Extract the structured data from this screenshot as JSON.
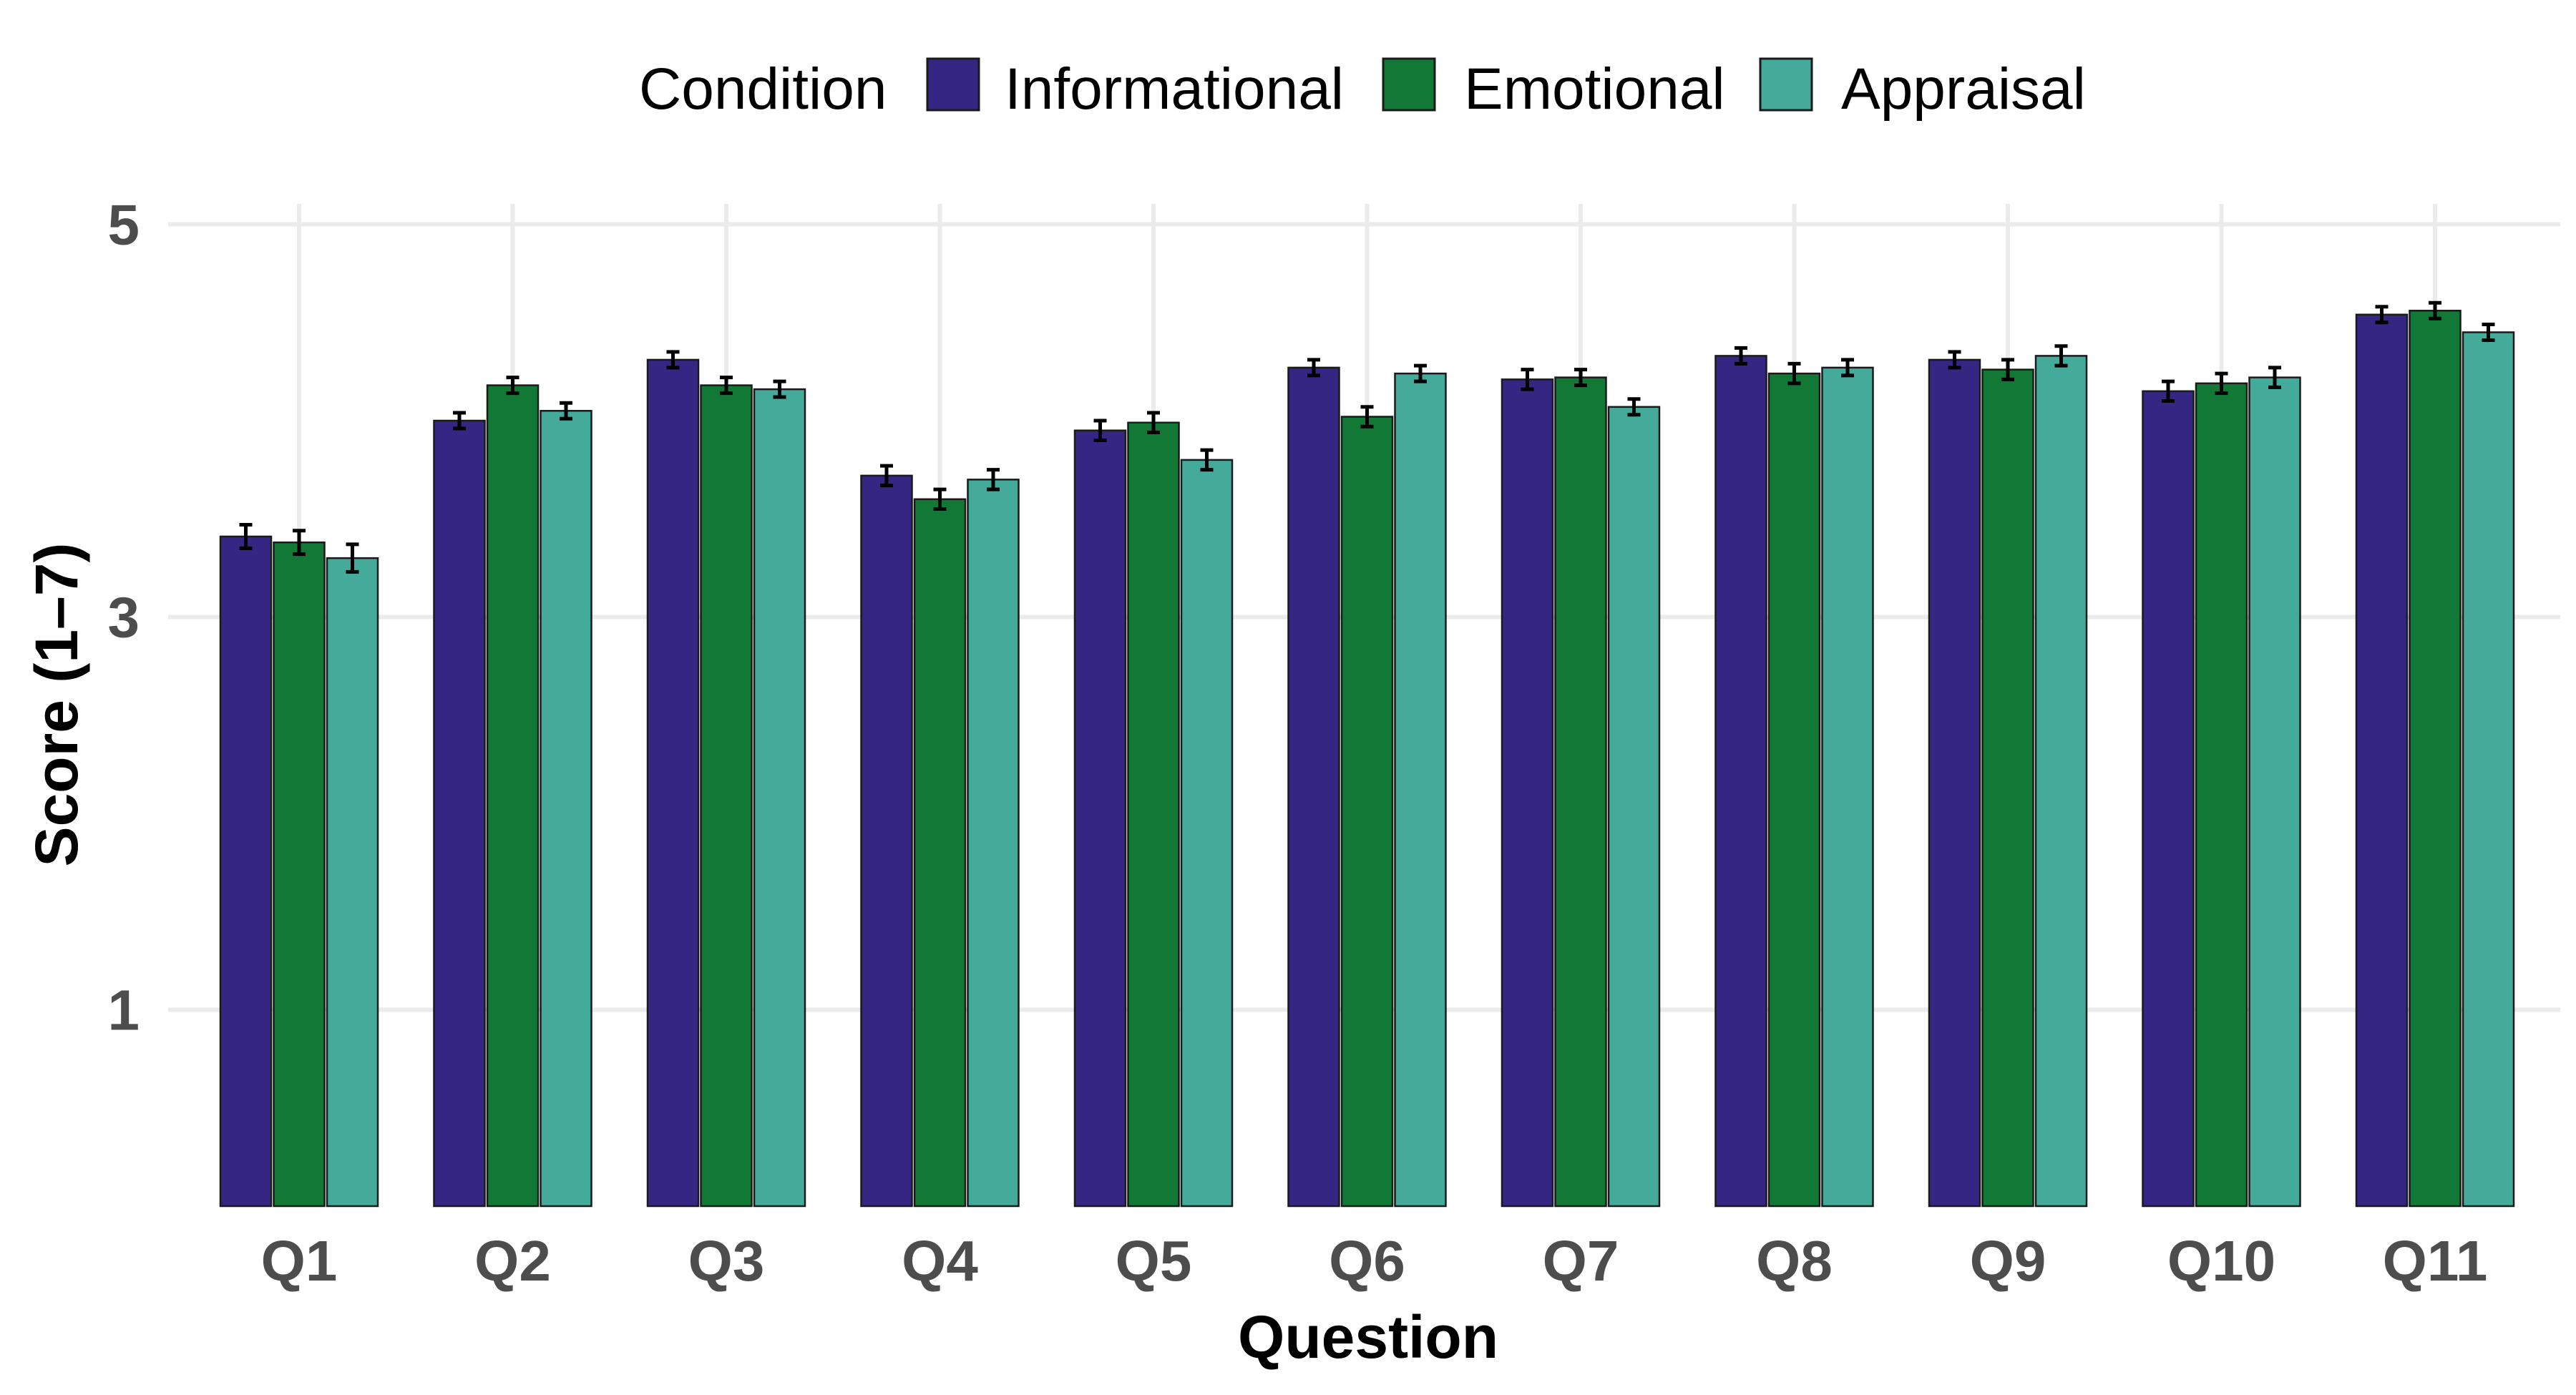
{
  "chart_data": {
    "type": "bar",
    "xlabel": "Question",
    "ylabel": "Score (1–7)",
    "ylim": [
      0,
      5
    ],
    "yticks": [
      1,
      3,
      5
    ],
    "grid": true,
    "legend": {
      "title": "Condition",
      "position": "top"
    },
    "categories": [
      "Q1",
      "Q2",
      "Q3",
      "Q4",
      "Q5",
      "Q6",
      "Q7",
      "Q8",
      "Q9",
      "Q10",
      "Q11"
    ],
    "series": [
      {
        "name": "Informational",
        "color": "#352683",
        "values": [
          3.41,
          4.0,
          4.31,
          3.72,
          3.95,
          4.27,
          4.21,
          4.33,
          4.31,
          4.15,
          4.54
        ],
        "errors": [
          0.06,
          0.04,
          0.04,
          0.05,
          0.05,
          0.04,
          0.05,
          0.04,
          0.04,
          0.05,
          0.04
        ]
      },
      {
        "name": "Emotional",
        "color": "#127836",
        "values": [
          3.38,
          4.18,
          4.18,
          3.6,
          3.99,
          4.02,
          4.22,
          4.24,
          4.26,
          4.19,
          4.56
        ],
        "errors": [
          0.06,
          0.04,
          0.04,
          0.05,
          0.05,
          0.05,
          0.04,
          0.05,
          0.05,
          0.05,
          0.04
        ]
      },
      {
        "name": "Appraisal",
        "color": "#44aa99",
        "values": [
          3.3,
          4.05,
          4.16,
          3.7,
          3.8,
          4.24,
          4.07,
          4.27,
          4.33,
          4.22,
          4.45
        ],
        "errors": [
          0.07,
          0.04,
          0.04,
          0.05,
          0.05,
          0.04,
          0.04,
          0.04,
          0.05,
          0.05,
          0.04
        ]
      }
    ]
  }
}
